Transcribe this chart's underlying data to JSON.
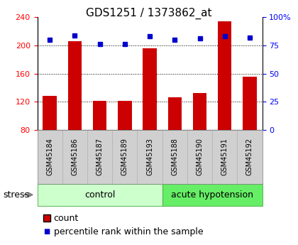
{
  "title": "GDS1251 / 1373862_at",
  "samples": [
    "GSM45184",
    "GSM45186",
    "GSM45187",
    "GSM45189",
    "GSM45193",
    "GSM45188",
    "GSM45190",
    "GSM45191",
    "GSM45192"
  ],
  "counts": [
    128,
    206,
    121,
    121,
    196,
    126,
    132,
    234,
    155
  ],
  "percentiles": [
    80,
    84,
    76,
    76,
    83,
    80,
    81,
    83,
    82
  ],
  "control_count": 5,
  "ahypo_count": 4,
  "bar_color": "#cc0000",
  "dot_color": "#0000cc",
  "ymin": 80,
  "ymax": 240,
  "yticks_left": [
    80,
    120,
    160,
    200,
    240
  ],
  "yticks_right": [
    0,
    25,
    50,
    75,
    100
  ],
  "grid_values": [
    120,
    160,
    200
  ],
  "control_color": "#ccffcc",
  "ahypo_color": "#66ee66",
  "xtick_bg": "#d0d0d0",
  "title_fontsize": 11,
  "tick_fontsize": 8,
  "label_fontsize": 9,
  "legend_count_label": "count",
  "legend_percentile_label": "percentile rank within the sample"
}
